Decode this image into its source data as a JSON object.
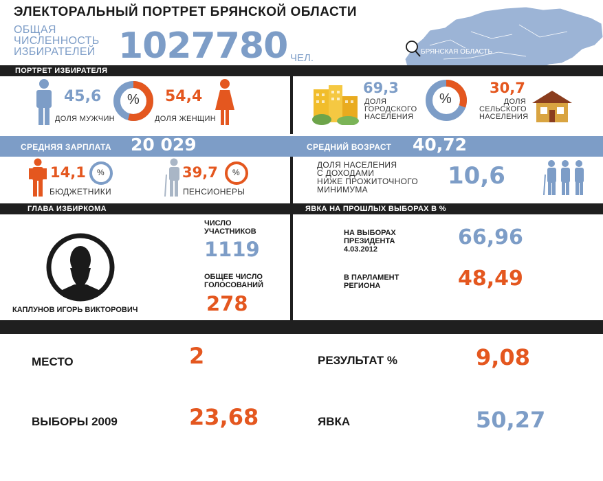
{
  "title": "ЭЛЕКТОРАЛЬНЫЙ ПОРТРЕТ БРЯНСКОЙ ОБЛАСТИ",
  "voters": {
    "label_line1": "ОБЩАЯ",
    "label_line2": "ЧИСЛЕННОСТЬ",
    "label_line3": "ИЗБИРАТЕЛЕЙ",
    "value": "1027780",
    "unit": "ЧЕЛ."
  },
  "map_label": "БРЯНСКАЯ ОБЛАСТЬ",
  "sections": {
    "portrait": "ПОРТРЕТ ИЗБИРАТЕЛЯ",
    "chief": "ГЛАВА ИЗБИРКОМА",
    "turnout": "ЯВКА НА ПРОШЛЫХ ВЫБОРАХ В %"
  },
  "gender": {
    "men_value": "45,6",
    "men_label": "ДОЛЯ МУЖЧИН",
    "women_value": "54,4",
    "women_label": "ДОЛЯ ЖЕНЩИН",
    "percent_sign": "%",
    "men_share": 45.6
  },
  "settlement": {
    "urban_value": "69,3",
    "urban_l1": "ДОЛЯ",
    "urban_l2": "ГОРОДСКОГО",
    "urban_l3": "НАСЕЛЕНИЯ",
    "rural_value": "30,7",
    "rural_l1": "ДОЛЯ",
    "rural_l2": "СЕЛЬСКОГО",
    "rural_l3": "НАСЕЛЕНИЯ",
    "percent_sign": "%",
    "urban_share": 69.3
  },
  "salary": {
    "label": "СРЕДНЯЯ ЗАРПЛАТА",
    "value": "20 029"
  },
  "age": {
    "label": "СРЕДНИЙ ВОЗРАСТ",
    "value": "40,72"
  },
  "budget": {
    "value": "14,1",
    "label": "БЮДЖЕТНИКИ",
    "percent_sign": "%"
  },
  "pension": {
    "value": "39,7",
    "label": "ПЕНСИОНЕРЫ",
    "percent_sign": "%"
  },
  "poverty": {
    "l1": "ДОЛЯ НАСЕЛЕНИЯ",
    "l2": "С ДОХОДАМИ",
    "l3": "НИЖЕ ПРОЖИТОЧНОГО",
    "l4": "МИНИМУМА",
    "value": "10,6"
  },
  "chief": {
    "name": "КАПЛУНОВ ИГОРЬ ВИКТОРОВИЧ",
    "participants_l1": "ЧИСЛО",
    "participants_l2": "УЧАСТНИКОВ",
    "participants_value": "1119",
    "votes_l1": "ОБЩЕЕ ЧИСЛО",
    "votes_l2": "ГОЛОСОВАНИЙ",
    "votes_value": "278"
  },
  "turnout": {
    "president_l1": "НА ВЫБОРАХ",
    "president_l2": "ПРЕЗИДЕНТА",
    "president_l3": "4.03.2012",
    "president_value": "66,96",
    "parliament_l1": "В ПАРЛАМЕНТ",
    "parliament_l2": "РЕГИОНА",
    "parliament_value": "48,49"
  },
  "footer": {
    "place_label": "МЕСТО",
    "place_value": "2",
    "result_label": "РЕЗУЛЬТАТ %",
    "result_value": "9,08",
    "elections_label": "ВЫБОРЫ 2009",
    "elections_value": "23,68",
    "turnout_label": "ЯВКА",
    "turnout_value": "50,27"
  },
  "colors": {
    "blue": "#7d9dc7",
    "orange": "#e4571f",
    "dark": "#1f1f1f"
  }
}
